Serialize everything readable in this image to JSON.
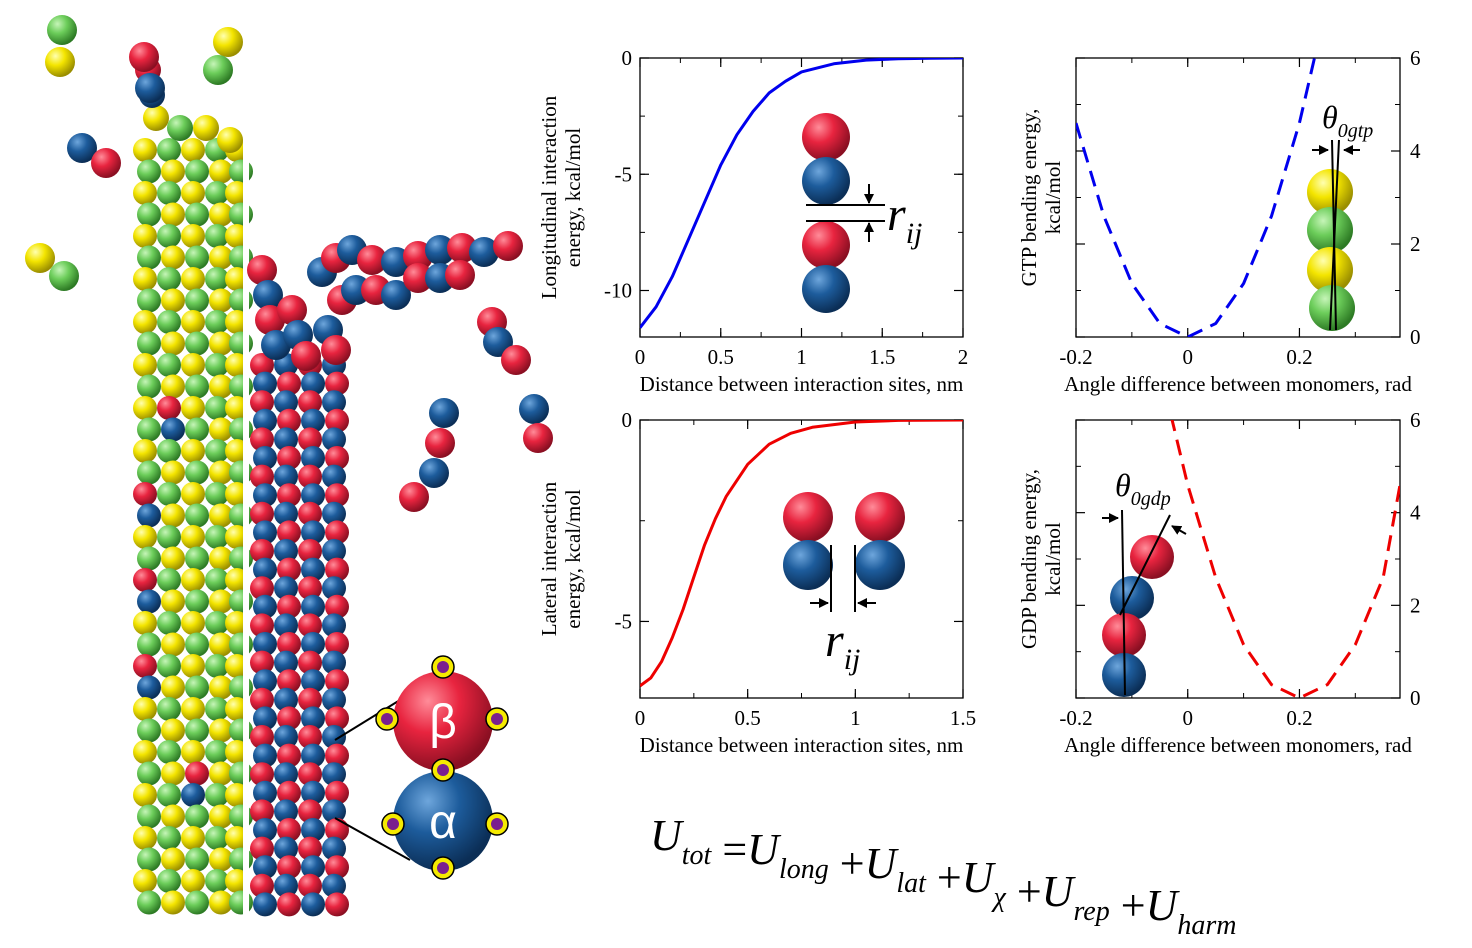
{
  "chart_data": [
    {
      "type": "line",
      "id": "longitudinal",
      "xlabel": "Distance between interaction sites, nm",
      "ylabel": [
        "Longitudinal interaction",
        "energy, kcal/mol"
      ],
      "xlim": [
        0,
        2
      ],
      "ylim": [
        -12,
        0
      ],
      "xticks": [
        "0",
        "0.5",
        "1",
        "1.5",
        "2"
      ],
      "yticks": [
        "0",
        "-5",
        "-10"
      ],
      "series": [
        {
          "color": "#0000ee",
          "style": "solid",
          "x": [
            0,
            0.1,
            0.2,
            0.3,
            0.4,
            0.5,
            0.6,
            0.7,
            0.8,
            0.9,
            1.0,
            1.2,
            1.4,
            1.6,
            1.8,
            2.0
          ],
          "y": [
            -11.6,
            -10.7,
            -9.4,
            -7.8,
            -6.2,
            -4.6,
            -3.3,
            -2.3,
            -1.5,
            -1.0,
            -0.6,
            -0.25,
            -0.09,
            -0.03,
            -0.01,
            0
          ]
        }
      ],
      "inset_label": {
        "main": "r",
        "sub": "ij"
      }
    },
    {
      "type": "line",
      "id": "gtp",
      "xlabel": "Angle difference between monomers, rad",
      "ylabel": [
        "GTP bending energy,",
        "kcal/mol"
      ],
      "xlim": [
        -0.2,
        0.38
      ],
      "ylim": [
        0,
        6
      ],
      "xticks": [
        "-0.2",
        "0",
        "0.2"
      ],
      "yticks_right": [
        "0",
        "2",
        "4",
        "6"
      ],
      "series": [
        {
          "color": "#0000ee",
          "style": "dashed",
          "x": [
            -0.2,
            -0.15,
            -0.1,
            -0.05,
            0,
            0.05,
            0.1,
            0.15,
            0.2,
            0.25
          ],
          "y": [
            4.6,
            2.6,
            1.15,
            0.29,
            0,
            0.29,
            1.15,
            2.6,
            4.6,
            7.2
          ]
        }
      ],
      "inset_label": {
        "main": "θ",
        "sub": "0gtp"
      }
    },
    {
      "type": "line",
      "id": "lateral",
      "xlabel": "Distance between interaction sites, nm",
      "ylabel": [
        "Lateral interaction",
        "energy, kcal/mol"
      ],
      "xlim": [
        0,
        1.5
      ],
      "ylim": [
        -6.9,
        0
      ],
      "xticks": [
        "0",
        "0.5",
        "1",
        "1.5"
      ],
      "yticks": [
        "0",
        "-5"
      ],
      "series": [
        {
          "color": "#ee0000",
          "style": "solid",
          "x": [
            0,
            0.05,
            0.1,
            0.15,
            0.2,
            0.25,
            0.3,
            0.35,
            0.4,
            0.5,
            0.6,
            0.7,
            0.8,
            1.0,
            1.2,
            1.5
          ],
          "y": [
            -6.6,
            -6.4,
            -6.0,
            -5.4,
            -4.7,
            -3.9,
            -3.1,
            -2.45,
            -1.9,
            -1.1,
            -0.6,
            -0.33,
            -0.18,
            -0.05,
            -0.01,
            0
          ]
        }
      ],
      "inset_label": {
        "main": "r",
        "sub": "ij"
      }
    },
    {
      "type": "line",
      "id": "gdp",
      "xlabel": "Angle difference between monomers, rad",
      "ylabel": [
        "GDP bending energy,",
        "kcal/mol"
      ],
      "xlim": [
        -0.2,
        0.38
      ],
      "ylim": [
        0,
        6
      ],
      "xticks": [
        "-0.2",
        "0",
        "0.2"
      ],
      "yticks_right": [
        "0",
        "2",
        "4",
        "6"
      ],
      "series": [
        {
          "color": "#ee0000",
          "style": "dashed",
          "x": [
            -0.03,
            0,
            0.05,
            0.1,
            0.15,
            0.2,
            0.25,
            0.3,
            0.35,
            0.38
          ],
          "y": [
            6.1,
            4.6,
            2.6,
            1.15,
            0.29,
            0,
            0.29,
            1.15,
            2.6,
            4.6
          ]
        }
      ],
      "inset_label": {
        "main": "θ",
        "sub": "0gdp"
      }
    }
  ],
  "legend_monomers": {
    "beta": "β",
    "alpha": "α"
  },
  "formula": {
    "lhs": "U",
    "lhs_sub": "tot",
    "terms": [
      {
        "main": "U",
        "sub": "long"
      },
      {
        "main": "U",
        "sub": "lat"
      },
      {
        "main": "U",
        "sub": "χ"
      },
      {
        "main": "U",
        "sub": "rep"
      },
      {
        "main": "U",
        "sub": "harm"
      }
    ]
  },
  "colors": {
    "red": "#e0304a",
    "blue": "#1f5f9f",
    "yellow": "#f2e600",
    "green": "#6fcf5f",
    "purple": "#7a1f8f"
  }
}
